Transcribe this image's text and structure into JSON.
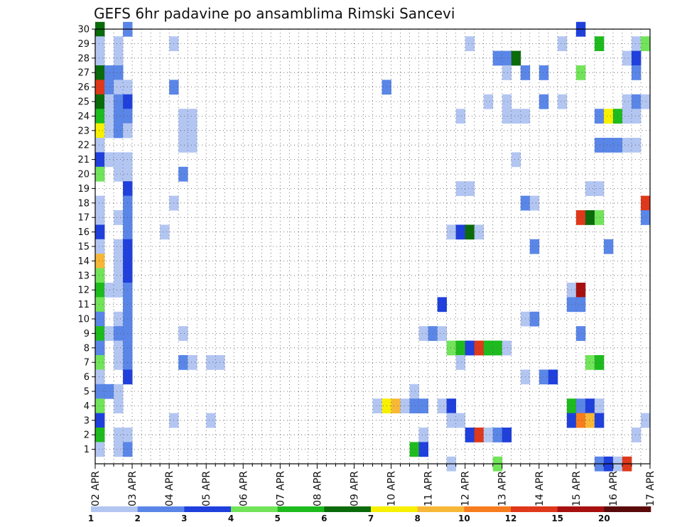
{
  "chart_data": {
    "type": "heatmap",
    "title": "GEFS 6hr padavine po ansamblima Rimski Sancevi",
    "x_ticks": [
      "02 APR",
      "03 APR",
      "04 APR",
      "05 APR",
      "06 APR",
      "07 APR",
      "08 APR",
      "09 APR",
      "10 APR",
      "11 APR",
      "12 APR",
      "13 APR",
      "14 APR",
      "15 APR",
      "16 APR",
      "17 APR"
    ],
    "y_ticks": [
      1,
      2,
      3,
      4,
      5,
      6,
      7,
      8,
      9,
      10,
      11,
      12,
      13,
      14,
      15,
      16,
      17,
      18,
      19,
      20,
      21,
      22,
      23,
      24,
      25,
      26,
      27,
      28,
      29,
      30
    ],
    "x_range": [
      0,
      60
    ],
    "y_range": [
      0,
      30
    ],
    "grid": "dotted",
    "steps_per_day": 4,
    "color_levels": [
      "1",
      "2",
      "3",
      "4",
      "5",
      "6",
      "7",
      "8",
      "10",
      "12",
      "15",
      "20"
    ],
    "colors": [
      "#b3c6f2",
      "#5a86e8",
      "#1f40dc",
      "#72e45a",
      "#1ebb1e",
      "#0a6b0a",
      "#f7f000",
      "#f7b838",
      "#f77c1e",
      "#e0381a",
      "#a81010",
      "#5a0a0a"
    ],
    "cells": [
      [
        0,
        30,
        5
      ],
      [
        3,
        30,
        1
      ],
      [
        52,
        30,
        2
      ],
      [
        0,
        29,
        0
      ],
      [
        2,
        29,
        0
      ],
      [
        8,
        29,
        0
      ],
      [
        40,
        29,
        0
      ],
      [
        50,
        29,
        0
      ],
      [
        54,
        29,
        4
      ],
      [
        58,
        29,
        0
      ],
      [
        59,
        29,
        3
      ],
      [
        0,
        28,
        0
      ],
      [
        2,
        28,
        0
      ],
      [
        43,
        28,
        1
      ],
      [
        44,
        28,
        1
      ],
      [
        45,
        28,
        5
      ],
      [
        57,
        28,
        0
      ],
      [
        58,
        28,
        2
      ],
      [
        0,
        27,
        5
      ],
      [
        1,
        27,
        1
      ],
      [
        2,
        27,
        1
      ],
      [
        44,
        27,
        0
      ],
      [
        46,
        27,
        1
      ],
      [
        48,
        27,
        1
      ],
      [
        52,
        27,
        3
      ],
      [
        58,
        27,
        1
      ],
      [
        0,
        26,
        9
      ],
      [
        1,
        26,
        1
      ],
      [
        2,
        26,
        0
      ],
      [
        3,
        26,
        0
      ],
      [
        8,
        26,
        1
      ],
      [
        31,
        26,
        1
      ],
      [
        0,
        25,
        5
      ],
      [
        1,
        25,
        0
      ],
      [
        2,
        25,
        1
      ],
      [
        3,
        25,
        2
      ],
      [
        42,
        25,
        0
      ],
      [
        44,
        25,
        0
      ],
      [
        48,
        25,
        1
      ],
      [
        50,
        25,
        0
      ],
      [
        57,
        25,
        0
      ],
      [
        58,
        25,
        1
      ],
      [
        59,
        25,
        0
      ],
      [
        0,
        24,
        4
      ],
      [
        1,
        24,
        0
      ],
      [
        2,
        24,
        1
      ],
      [
        3,
        24,
        1
      ],
      [
        9,
        24,
        0
      ],
      [
        10,
        24,
        0
      ],
      [
        39,
        24,
        0
      ],
      [
        44,
        24,
        0
      ],
      [
        45,
        24,
        0
      ],
      [
        46,
        24,
        0
      ],
      [
        54,
        24,
        1
      ],
      [
        55,
        24,
        6
      ],
      [
        56,
        24,
        4
      ],
      [
        57,
        24,
        0
      ],
      [
        58,
        24,
        0
      ],
      [
        0,
        23,
        6
      ],
      [
        1,
        23,
        0
      ],
      [
        2,
        23,
        1
      ],
      [
        3,
        23,
        0
      ],
      [
        9,
        23,
        0
      ],
      [
        10,
        23,
        0
      ],
      [
        0,
        22,
        0
      ],
      [
        9,
        22,
        0
      ],
      [
        10,
        22,
        0
      ],
      [
        54,
        22,
        1
      ],
      [
        55,
        22,
        1
      ],
      [
        56,
        22,
        1
      ],
      [
        57,
        22,
        0
      ],
      [
        58,
        22,
        0
      ],
      [
        0,
        21,
        2
      ],
      [
        1,
        21,
        0
      ],
      [
        2,
        21,
        0
      ],
      [
        3,
        21,
        0
      ],
      [
        45,
        21,
        0
      ],
      [
        0,
        20,
        3
      ],
      [
        2,
        20,
        0
      ],
      [
        3,
        20,
        0
      ],
      [
        9,
        20,
        1
      ],
      [
        3,
        19,
        2
      ],
      [
        39,
        19,
        0
      ],
      [
        40,
        19,
        0
      ],
      [
        53,
        19,
        0
      ],
      [
        54,
        19,
        0
      ],
      [
        0,
        18,
        0
      ],
      [
        3,
        18,
        1
      ],
      [
        8,
        18,
        0
      ],
      [
        46,
        18,
        1
      ],
      [
        47,
        18,
        0
      ],
      [
        59,
        18,
        9
      ],
      [
        0,
        17,
        0
      ],
      [
        2,
        17,
        0
      ],
      [
        3,
        17,
        1
      ],
      [
        52,
        17,
        9
      ],
      [
        53,
        17,
        5
      ],
      [
        54,
        17,
        3
      ],
      [
        59,
        17,
        1
      ],
      [
        0,
        16,
        2
      ],
      [
        3,
        16,
        1
      ],
      [
        7,
        16,
        0
      ],
      [
        38,
        16,
        0
      ],
      [
        39,
        16,
        2
      ],
      [
        40,
        16,
        5
      ],
      [
        41,
        16,
        0
      ],
      [
        0,
        15,
        0
      ],
      [
        2,
        15,
        0
      ],
      [
        3,
        15,
        2
      ],
      [
        47,
        15,
        1
      ],
      [
        55,
        15,
        1
      ],
      [
        0,
        14,
        7
      ],
      [
        2,
        14,
        0
      ],
      [
        3,
        14,
        2
      ],
      [
        0,
        13,
        3
      ],
      [
        2,
        13,
        0
      ],
      [
        3,
        13,
        2
      ],
      [
        0,
        12,
        4
      ],
      [
        1,
        12,
        0
      ],
      [
        2,
        12,
        0
      ],
      [
        3,
        12,
        1
      ],
      [
        51,
        12,
        0
      ],
      [
        52,
        12,
        10
      ],
      [
        0,
        11,
        3
      ],
      [
        3,
        11,
        1
      ],
      [
        37,
        11,
        2
      ],
      [
        51,
        11,
        1
      ],
      [
        52,
        11,
        1
      ],
      [
        0,
        10,
        1
      ],
      [
        2,
        10,
        0
      ],
      [
        3,
        10,
        1
      ],
      [
        46,
        10,
        0
      ],
      [
        47,
        10,
        1
      ],
      [
        0,
        9,
        4
      ],
      [
        1,
        9,
        0
      ],
      [
        2,
        9,
        1
      ],
      [
        3,
        9,
        1
      ],
      [
        9,
        9,
        0
      ],
      [
        35,
        9,
        0
      ],
      [
        36,
        9,
        1
      ],
      [
        37,
        9,
        0
      ],
      [
        52,
        9,
        1
      ],
      [
        0,
        8,
        1
      ],
      [
        2,
        8,
        0
      ],
      [
        3,
        8,
        1
      ],
      [
        38,
        8,
        3
      ],
      [
        39,
        8,
        4
      ],
      [
        40,
        8,
        2
      ],
      [
        41,
        8,
        9
      ],
      [
        42,
        8,
        4
      ],
      [
        43,
        8,
        4
      ],
      [
        44,
        8,
        0
      ],
      [
        0,
        7,
        3
      ],
      [
        2,
        7,
        0
      ],
      [
        3,
        7,
        1
      ],
      [
        9,
        7,
        1
      ],
      [
        10,
        7,
        0
      ],
      [
        12,
        7,
        0
      ],
      [
        13,
        7,
        0
      ],
      [
        39,
        7,
        0
      ],
      [
        53,
        7,
        3
      ],
      [
        54,
        7,
        4
      ],
      [
        0,
        6,
        0
      ],
      [
        3,
        6,
        2
      ],
      [
        46,
        6,
        0
      ],
      [
        48,
        6,
        1
      ],
      [
        49,
        6,
        2
      ],
      [
        0,
        5,
        1
      ],
      [
        1,
        5,
        1
      ],
      [
        2,
        5,
        0
      ],
      [
        34,
        5,
        0
      ],
      [
        0,
        4,
        3
      ],
      [
        2,
        4,
        0
      ],
      [
        30,
        4,
        0
      ],
      [
        31,
        4,
        6
      ],
      [
        32,
        4,
        7
      ],
      [
        33,
        4,
        0
      ],
      [
        34,
        4,
        1
      ],
      [
        35,
        4,
        1
      ],
      [
        37,
        4,
        0
      ],
      [
        38,
        4,
        2
      ],
      [
        51,
        4,
        4
      ],
      [
        52,
        4,
        1
      ],
      [
        53,
        4,
        2
      ],
      [
        54,
        4,
        0
      ],
      [
        0,
        3,
        2
      ],
      [
        8,
        3,
        0
      ],
      [
        12,
        3,
        0
      ],
      [
        38,
        3,
        0
      ],
      [
        39,
        3,
        0
      ],
      [
        51,
        3,
        2
      ],
      [
        52,
        3,
        8
      ],
      [
        53,
        3,
        7
      ],
      [
        54,
        3,
        2
      ],
      [
        59,
        3,
        0
      ],
      [
        0,
        2,
        4
      ],
      [
        2,
        2,
        0
      ],
      [
        3,
        2,
        0
      ],
      [
        35,
        2,
        0
      ],
      [
        40,
        2,
        2
      ],
      [
        41,
        2,
        9
      ],
      [
        42,
        2,
        0
      ],
      [
        43,
        2,
        1
      ],
      [
        44,
        2,
        2
      ],
      [
        58,
        2,
        0
      ],
      [
        0,
        1,
        0
      ],
      [
        2,
        1,
        0
      ],
      [
        3,
        1,
        1
      ],
      [
        34,
        1,
        4
      ],
      [
        35,
        1,
        2
      ],
      [
        38,
        0,
        0
      ],
      [
        43,
        0,
        3
      ],
      [
        54,
        0,
        1
      ],
      [
        55,
        0,
        2
      ],
      [
        56,
        0,
        0
      ],
      [
        57,
        0,
        9
      ]
    ]
  }
}
